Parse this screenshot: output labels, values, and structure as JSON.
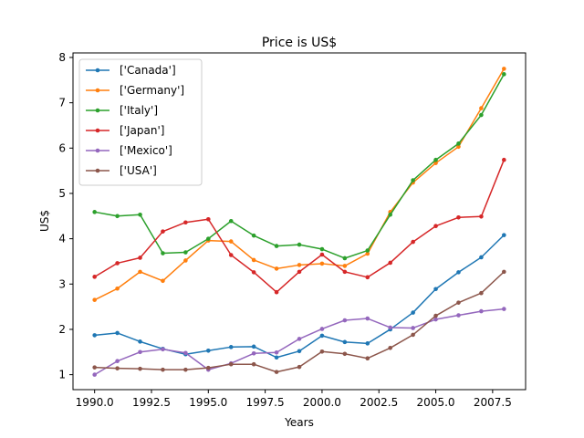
{
  "chart_data": {
    "type": "line",
    "title": "Price is US$",
    "xlabel": "Years",
    "ylabel": "US$",
    "xlim": [
      1989.05,
      2008.95
    ],
    "ylim": [
      0.67,
      8.1
    ],
    "x": [
      1990,
      1991,
      1992,
      1993,
      1994,
      1995,
      1996,
      1997,
      1998,
      1999,
      2000,
      2001,
      2002,
      2003,
      2004,
      2005,
      2006,
      2007,
      2008
    ],
    "xticks": [
      1990.0,
      1992.5,
      1995.0,
      1997.5,
      2000.0,
      2002.5,
      2005.0,
      2007.5
    ],
    "xtick_labels": [
      "1990.0",
      "1992.5",
      "1995.0",
      "1997.5",
      "2000.0",
      "2002.5",
      "2005.0",
      "2007.5"
    ],
    "yticks": [
      1,
      2,
      3,
      4,
      5,
      6,
      7,
      8
    ],
    "ytick_labels": [
      "1",
      "2",
      "3",
      "4",
      "5",
      "6",
      "7",
      "8"
    ],
    "grid": false,
    "legend_position": "upper-left",
    "series": [
      {
        "name": "['Canada']",
        "color": "#1f77b4",
        "values": [
          1.87,
          1.92,
          1.73,
          1.57,
          1.45,
          1.53,
          1.61,
          1.62,
          1.38,
          1.52,
          1.86,
          1.72,
          1.69,
          2.0,
          2.37,
          2.89,
          3.26,
          3.59,
          4.08
        ]
      },
      {
        "name": "['Germany']",
        "color": "#ff7f0e",
        "values": [
          2.65,
          2.9,
          3.27,
          3.07,
          3.52,
          3.96,
          3.94,
          3.53,
          3.34,
          3.42,
          3.45,
          3.4,
          3.67,
          4.59,
          5.24,
          5.67,
          6.03,
          6.88,
          7.75
        ]
      },
      {
        "name": "['Italy']",
        "color": "#2ca02c",
        "values": [
          4.59,
          4.5,
          4.53,
          3.68,
          3.7,
          4.0,
          4.39,
          4.07,
          3.84,
          3.87,
          3.77,
          3.57,
          3.74,
          4.53,
          5.29,
          5.74,
          6.1,
          6.73,
          7.63
        ]
      },
      {
        "name": "['Japan']",
        "color": "#d62728",
        "values": [
          3.16,
          3.46,
          3.58,
          4.16,
          4.36,
          4.43,
          3.64,
          3.26,
          2.82,
          3.27,
          3.65,
          3.27,
          3.15,
          3.47,
          3.93,
          4.28,
          4.47,
          4.49,
          5.74
        ]
      },
      {
        "name": "['Mexico']",
        "color": "#9467bd",
        "values": [
          1.0,
          1.3,
          1.5,
          1.56,
          1.48,
          1.11,
          1.25,
          1.47,
          1.49,
          1.79,
          2.01,
          2.2,
          2.24,
          2.04,
          2.03,
          2.22,
          2.31,
          2.4,
          2.45
        ]
      },
      {
        "name": "['USA']",
        "color": "#8c564b",
        "values": [
          1.16,
          1.14,
          1.13,
          1.11,
          1.11,
          1.15,
          1.23,
          1.23,
          1.06,
          1.17,
          1.51,
          1.46,
          1.36,
          1.59,
          1.88,
          2.3,
          2.59,
          2.8,
          3.27
        ]
      }
    ]
  }
}
